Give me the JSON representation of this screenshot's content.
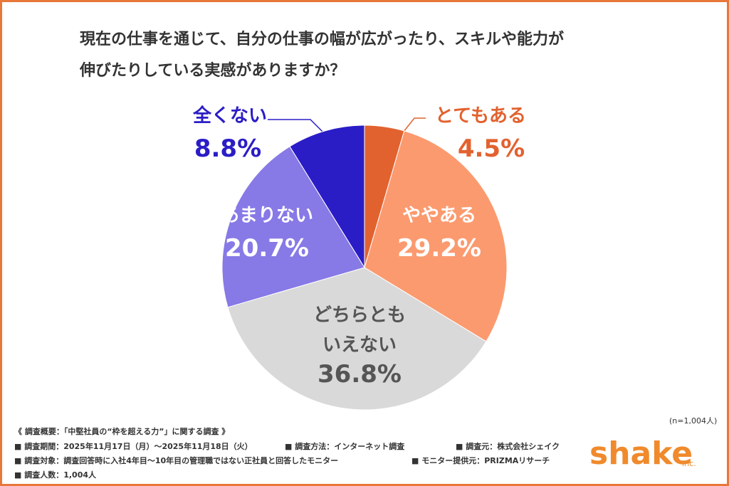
{
  "chart_data": {
    "type": "pie",
    "title": "現在の仕事を通じて、自分の仕事の幅が広がったり、スキルや能力が\n伸びたりしている実感がありますか？",
    "categories": [
      "とてもある",
      "ややある",
      "どちらとも\nいえない",
      "あまりない",
      "全くない"
    ],
    "values": [
      4.5,
      29.2,
      36.8,
      20.7,
      8.8
    ],
    "value_labels": [
      "4.5%",
      "29.2%",
      "36.8%",
      "20.7%",
      "8.8%"
    ],
    "colors": [
      "#e2622f",
      "#fb9a6f",
      "#d9d9d9",
      "#8779e6",
      "#2b1dc6"
    ],
    "label_colors": [
      "#e2622f",
      "#ffffff",
      "#555555",
      "#ffffff",
      "#2b1dc6"
    ],
    "note": "(n=1,004人)"
  },
  "footer": {
    "summary": "《 調査概要：「中堅社員の“枠を超える力”」に関する調査 》",
    "period": "■ 調査期間：2025年11月17日（月）～2025年11月18日（火）",
    "method": "■ 調査方法：インターネット調査",
    "source": "■ 調査元：株式会社シェイク",
    "target": "■ 調査対象：調査回答時に入社4年目～10年目の管理職ではない正社員と回答したモニター",
    "provider": "■ モニター提供元：PRIZMAリサーチ",
    "count": "■ 調査人数：1,004人",
    "logo": "shake",
    "logo_suffix": "Inc."
  }
}
